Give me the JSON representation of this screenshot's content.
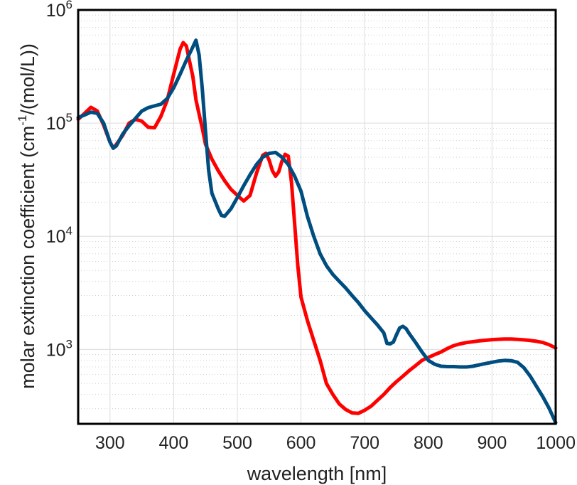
{
  "chart_data": {
    "type": "line",
    "title": "",
    "xlabel": "wavelength [nm]",
    "ylabel": {
      "pre": "molar extinction coefficient (cm",
      "sup": "-1",
      "post": "/(mol/L))"
    },
    "xlim": [
      250,
      1000
    ],
    "ylim": [
      220,
      1000000
    ],
    "y_scale": "log",
    "grid": true,
    "x_ticks": [
      {
        "value": 300,
        "label": "300"
      },
      {
        "value": 400,
        "label": "400"
      },
      {
        "value": 500,
        "label": "500"
      },
      {
        "value": 600,
        "label": "600"
      },
      {
        "value": 700,
        "label": "700"
      },
      {
        "value": 800,
        "label": "800"
      },
      {
        "value": 900,
        "label": "900"
      },
      {
        "value": 1000,
        "label": "1000"
      }
    ],
    "y_ticks": [
      {
        "value": 1000,
        "base": "10",
        "exp": "3"
      },
      {
        "value": 10000,
        "base": "10",
        "exp": "4"
      },
      {
        "value": 100000,
        "base": "10",
        "exp": "5"
      },
      {
        "value": 1000000,
        "base": "10",
        "exp": "6"
      }
    ],
    "series": [
      {
        "color": "#ff0000",
        "points": [
          [
            250,
            108000
          ],
          [
            260,
            122000
          ],
          [
            270,
            138000
          ],
          [
            280,
            128000
          ],
          [
            290,
            96000
          ],
          [
            300,
            68000
          ],
          [
            305,
            60000
          ],
          [
            310,
            65000
          ],
          [
            320,
            78000
          ],
          [
            330,
            100000
          ],
          [
            340,
            108000
          ],
          [
            350,
            104000
          ],
          [
            360,
            92000
          ],
          [
            370,
            91000
          ],
          [
            380,
            115000
          ],
          [
            390,
            160000
          ],
          [
            400,
            270000
          ],
          [
            410,
            450000
          ],
          [
            415,
            515000
          ],
          [
            420,
            480000
          ],
          [
            425,
            350000
          ],
          [
            430,
            260000
          ],
          [
            435,
            160000
          ],
          [
            440,
            120000
          ],
          [
            445,
            90000
          ],
          [
            450,
            65000
          ],
          [
            460,
            48000
          ],
          [
            470,
            38000
          ],
          [
            480,
            31000
          ],
          [
            490,
            26000
          ],
          [
            500,
            23000
          ],
          [
            510,
            20500
          ],
          [
            520,
            23000
          ],
          [
            530,
            36000
          ],
          [
            540,
            52000
          ],
          [
            545,
            54000
          ],
          [
            550,
            47000
          ],
          [
            555,
            38000
          ],
          [
            560,
            34000
          ],
          [
            565,
            37000
          ],
          [
            570,
            46000
          ],
          [
            575,
            53000
          ],
          [
            580,
            51000
          ],
          [
            585,
            30000
          ],
          [
            590,
            13000
          ],
          [
            595,
            5500
          ],
          [
            600,
            2900
          ],
          [
            610,
            1800
          ],
          [
            620,
            1200
          ],
          [
            630,
            800
          ],
          [
            640,
            500
          ],
          [
            650,
            400
          ],
          [
            660,
            330
          ],
          [
            670,
            295
          ],
          [
            680,
            275
          ],
          [
            690,
            272
          ],
          [
            700,
            290
          ],
          [
            710,
            315
          ],
          [
            720,
            355
          ],
          [
            730,
            400
          ],
          [
            740,
            460
          ],
          [
            750,
            520
          ],
          [
            760,
            580
          ],
          [
            770,
            650
          ],
          [
            780,
            720
          ],
          [
            790,
            800
          ],
          [
            800,
            850
          ],
          [
            810,
            900
          ],
          [
            820,
            950
          ],
          [
            830,
            1020
          ],
          [
            840,
            1080
          ],
          [
            850,
            1120
          ],
          [
            860,
            1150
          ],
          [
            870,
            1170
          ],
          [
            880,
            1190
          ],
          [
            890,
            1205
          ],
          [
            900,
            1220
          ],
          [
            910,
            1230
          ],
          [
            920,
            1235
          ],
          [
            930,
            1235
          ],
          [
            940,
            1225
          ],
          [
            950,
            1215
          ],
          [
            960,
            1200
          ],
          [
            970,
            1180
          ],
          [
            980,
            1150
          ],
          [
            990,
            1100
          ],
          [
            1000,
            1030
          ]
        ]
      },
      {
        "color": "#004d80",
        "points": [
          [
            250,
            112000
          ],
          [
            260,
            118000
          ],
          [
            270,
            125000
          ],
          [
            280,
            122000
          ],
          [
            290,
            100000
          ],
          [
            300,
            68000
          ],
          [
            305,
            60000
          ],
          [
            310,
            63000
          ],
          [
            320,
            80000
          ],
          [
            330,
            95000
          ],
          [
            340,
            110000
          ],
          [
            350,
            128000
          ],
          [
            360,
            137000
          ],
          [
            370,
            142000
          ],
          [
            380,
            147000
          ],
          [
            390,
            165000
          ],
          [
            400,
            205000
          ],
          [
            410,
            270000
          ],
          [
            420,
            360000
          ],
          [
            430,
            470000
          ],
          [
            435,
            540000
          ],
          [
            440,
            400000
          ],
          [
            445,
            200000
          ],
          [
            450,
            85000
          ],
          [
            455,
            38000
          ],
          [
            460,
            24000
          ],
          [
            470,
            17500
          ],
          [
            475,
            15300
          ],
          [
            480,
            15000
          ],
          [
            490,
            17500
          ],
          [
            500,
            22000
          ],
          [
            510,
            28000
          ],
          [
            520,
            35000
          ],
          [
            530,
            43000
          ],
          [
            540,
            50000
          ],
          [
            550,
            54000
          ],
          [
            560,
            55000
          ],
          [
            570,
            50000
          ],
          [
            580,
            43000
          ],
          [
            590,
            34000
          ],
          [
            600,
            25000
          ],
          [
            610,
            15000
          ],
          [
            620,
            10000
          ],
          [
            630,
            7000
          ],
          [
            640,
            5500
          ],
          [
            650,
            4600
          ],
          [
            660,
            4000
          ],
          [
            670,
            3500
          ],
          [
            680,
            3000
          ],
          [
            690,
            2600
          ],
          [
            700,
            2200
          ],
          [
            710,
            1900
          ],
          [
            720,
            1650
          ],
          [
            730,
            1400
          ],
          [
            735,
            1130
          ],
          [
            740,
            1120
          ],
          [
            745,
            1160
          ],
          [
            750,
            1350
          ],
          [
            755,
            1550
          ],
          [
            760,
            1600
          ],
          [
            765,
            1530
          ],
          [
            770,
            1380
          ],
          [
            780,
            1150
          ],
          [
            790,
            950
          ],
          [
            800,
            800
          ],
          [
            810,
            740
          ],
          [
            820,
            710
          ],
          [
            830,
            705
          ],
          [
            840,
            705
          ],
          [
            850,
            700
          ],
          [
            860,
            700
          ],
          [
            870,
            710
          ],
          [
            880,
            730
          ],
          [
            890,
            750
          ],
          [
            900,
            770
          ],
          [
            910,
            790
          ],
          [
            920,
            800
          ],
          [
            930,
            795
          ],
          [
            940,
            770
          ],
          [
            950,
            690
          ],
          [
            960,
            580
          ],
          [
            970,
            470
          ],
          [
            980,
            380
          ],
          [
            990,
            300
          ],
          [
            1000,
            225
          ]
        ]
      }
    ]
  }
}
